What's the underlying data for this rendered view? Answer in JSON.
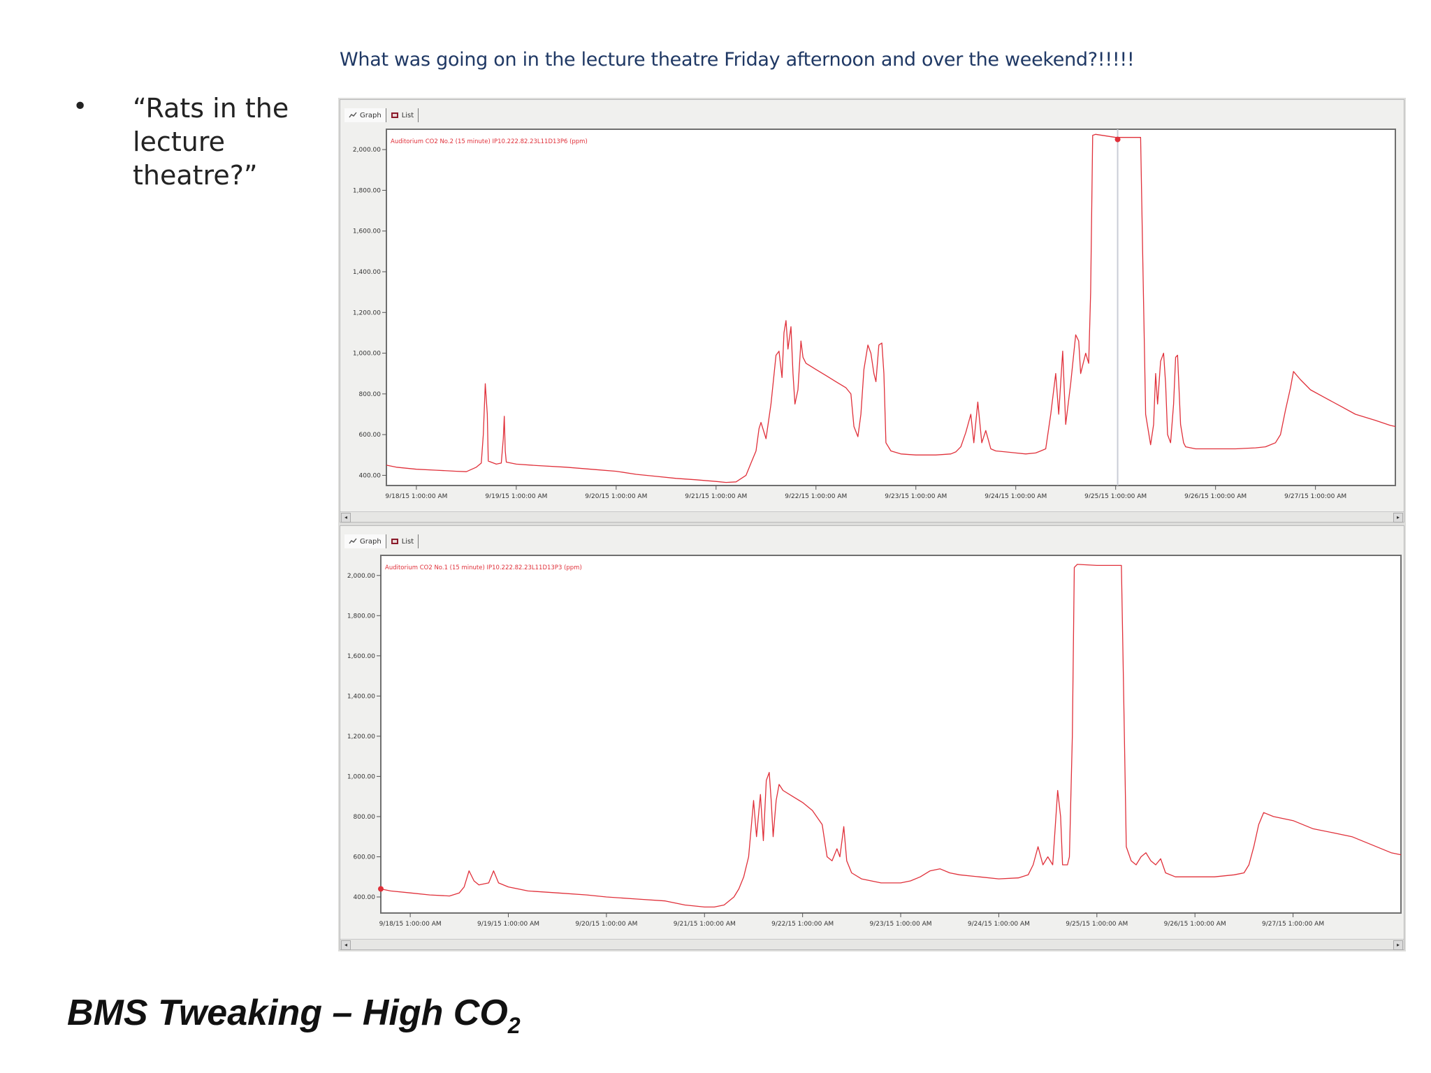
{
  "slide": {
    "headline": "What was going on in the lecture theatre Friday afternoon and over the weekend?!!!!!",
    "bullet": "“Rats in the lecture theatre?”",
    "footer_title": "BMS Tweaking – High CO",
    "footer_subscript": "2"
  },
  "tabs": [
    {
      "label": "Graph"
    },
    {
      "label": "List"
    }
  ],
  "chart_data": [
    {
      "type": "line",
      "legend": "Auditorium CO2 No.2 (15 minute) IP10.222.82.23L11D13P6 (ppm)",
      "ylim": [
        350,
        2100
      ],
      "yticks": [
        400,
        600,
        800,
        1000,
        1200,
        1400,
        1600,
        1800,
        2000
      ],
      "ytick_labels": [
        "400.00",
        "600.00",
        "800.00",
        "1,000.00",
        "1,200.00",
        "1,400.00",
        "1,600.00",
        "1,800.00",
        "2,000.00"
      ],
      "xlim": [
        -0.3,
        9.8
      ],
      "xticks": [
        0,
        1,
        2,
        3,
        4,
        5,
        6,
        7,
        8,
        9
      ],
      "xtick_labels": [
        "9/18/15 1:00:00 AM",
        "9/19/15 1:00:00 AM",
        "9/20/15 1:00:00 AM",
        "9/21/15 1:00:00 AM",
        "9/22/15 1:00:00 AM",
        "9/23/15 1:00:00 AM",
        "9/24/15 1:00:00 AM",
        "9/25/15 1:00:00 AM",
        "9/26/15 1:00:00 AM",
        "9/27/15 1:00:00 AM"
      ],
      "cursor_x": 7.02,
      "cursor_point": [
        7.02,
        2050
      ],
      "line_color": "#e0303a",
      "points": [
        [
          -0.3,
          450
        ],
        [
          -0.2,
          440
        ],
        [
          0.0,
          430
        ],
        [
          0.2,
          425
        ],
        [
          0.4,
          420
        ],
        [
          0.5,
          418
        ],
        [
          0.6,
          440
        ],
        [
          0.65,
          460
        ],
        [
          0.67,
          600
        ],
        [
          0.69,
          850
        ],
        [
          0.71,
          700
        ],
        [
          0.72,
          470
        ],
        [
          0.8,
          455
        ],
        [
          0.85,
          460
        ],
        [
          0.87,
          580
        ],
        [
          0.88,
          690
        ],
        [
          0.89,
          520
        ],
        [
          0.9,
          465
        ],
        [
          1.0,
          455
        ],
        [
          1.2,
          448
        ],
        [
          1.5,
          440
        ],
        [
          1.8,
          428
        ],
        [
          2.0,
          420
        ],
        [
          2.2,
          405
        ],
        [
          2.4,
          395
        ],
        [
          2.6,
          385
        ],
        [
          2.8,
          378
        ],
        [
          3.0,
          370
        ],
        [
          3.1,
          365
        ],
        [
          3.2,
          368
        ],
        [
          3.3,
          400
        ],
        [
          3.35,
          460
        ],
        [
          3.4,
          520
        ],
        [
          3.43,
          630
        ],
        [
          3.45,
          660
        ],
        [
          3.5,
          580
        ],
        [
          3.55,
          750
        ],
        [
          3.6,
          990
        ],
        [
          3.63,
          1010
        ],
        [
          3.66,
          880
        ],
        [
          3.68,
          1100
        ],
        [
          3.7,
          1160
        ],
        [
          3.72,
          1020
        ],
        [
          3.75,
          1130
        ],
        [
          3.77,
          900
        ],
        [
          3.79,
          750
        ],
        [
          3.82,
          820
        ],
        [
          3.85,
          1060
        ],
        [
          3.87,
          980
        ],
        [
          3.9,
          950
        ],
        [
          4.0,
          920
        ],
        [
          4.1,
          890
        ],
        [
          4.2,
          860
        ],
        [
          4.3,
          830
        ],
        [
          4.35,
          800
        ],
        [
          4.38,
          640
        ],
        [
          4.42,
          590
        ],
        [
          4.45,
          700
        ],
        [
          4.48,
          920
        ],
        [
          4.52,
          1040
        ],
        [
          4.55,
          1000
        ],
        [
          4.58,
          900
        ],
        [
          4.6,
          860
        ],
        [
          4.63,
          1040
        ],
        [
          4.66,
          1050
        ],
        [
          4.68,
          900
        ],
        [
          4.7,
          560
        ],
        [
          4.75,
          520
        ],
        [
          4.85,
          505
        ],
        [
          5.0,
          500
        ],
        [
          5.2,
          500
        ],
        [
          5.35,
          505
        ],
        [
          5.4,
          515
        ],
        [
          5.45,
          540
        ],
        [
          5.5,
          610
        ],
        [
          5.55,
          700
        ],
        [
          5.58,
          560
        ],
        [
          5.62,
          760
        ],
        [
          5.66,
          560
        ],
        [
          5.7,
          620
        ],
        [
          5.75,
          530
        ],
        [
          5.8,
          520
        ],
        [
          5.9,
          515
        ],
        [
          6.0,
          510
        ],
        [
          6.1,
          505
        ],
        [
          6.2,
          510
        ],
        [
          6.25,
          520
        ],
        [
          6.3,
          530
        ],
        [
          6.35,
          700
        ],
        [
          6.4,
          900
        ],
        [
          6.43,
          700
        ],
        [
          6.47,
          1010
        ],
        [
          6.5,
          650
        ],
        [
          6.55,
          850
        ],
        [
          6.6,
          1090
        ],
        [
          6.63,
          1060
        ],
        [
          6.65,
          900
        ],
        [
          6.7,
          1000
        ],
        [
          6.73,
          950
        ],
        [
          6.75,
          1300
        ],
        [
          6.77,
          2070
        ],
        [
          6.8,
          2075
        ],
        [
          7.0,
          2060
        ],
        [
          7.25,
          2060
        ],
        [
          7.27,
          1500
        ],
        [
          7.3,
          700
        ],
        [
          7.35,
          550
        ],
        [
          7.38,
          650
        ],
        [
          7.4,
          900
        ],
        [
          7.42,
          750
        ],
        [
          7.45,
          960
        ],
        [
          7.48,
          1000
        ],
        [
          7.5,
          850
        ],
        [
          7.52,
          600
        ],
        [
          7.55,
          560
        ],
        [
          7.58,
          750
        ],
        [
          7.6,
          980
        ],
        [
          7.62,
          990
        ],
        [
          7.65,
          650
        ],
        [
          7.68,
          560
        ],
        [
          7.7,
          540
        ],
        [
          7.8,
          530
        ],
        [
          8.0,
          530
        ],
        [
          8.2,
          530
        ],
        [
          8.4,
          535
        ],
        [
          8.5,
          540
        ],
        [
          8.6,
          560
        ],
        [
          8.65,
          600
        ],
        [
          8.7,
          720
        ],
        [
          8.75,
          830
        ],
        [
          8.78,
          910
        ],
        [
          8.85,
          870
        ],
        [
          8.95,
          820
        ],
        [
          9.1,
          780
        ],
        [
          9.25,
          740
        ],
        [
          9.4,
          700
        ],
        [
          9.6,
          670
        ],
        [
          9.75,
          645
        ],
        [
          9.8,
          640
        ]
      ]
    },
    {
      "type": "line",
      "legend": "Auditorium CO2 No.1 (15 minute) IP10.222.82.23L11D13P3 (ppm)",
      "ylim": [
        320,
        2100
      ],
      "yticks": [
        400,
        600,
        800,
        1000,
        1200,
        1400,
        1600,
        1800,
        2000
      ],
      "ytick_labels": [
        "400.00",
        "600.00",
        "800.00",
        "1,000.00",
        "1,200.00",
        "1,400.00",
        "1,600.00",
        "1,800.00",
        "2,000.00"
      ],
      "xlim": [
        -0.3,
        10.1
      ],
      "xticks": [
        0,
        1,
        2,
        3,
        4,
        5,
        6,
        7,
        8,
        9
      ],
      "xtick_labels": [
        "9/18/15 1:00:00 AM",
        "9/19/15 1:00:00 AM",
        "9/20/15 1:00:00 AM",
        "9/21/15 1:00:00 AM",
        "9/22/15 1:00:00 AM",
        "9/23/15 1:00:00 AM",
        "9/24/15 1:00:00 AM",
        "9/25/15 1:00:00 AM",
        "9/26/15 1:00:00 AM",
        "9/27/15 1:00:00 AM"
      ],
      "cursor_point": [
        -0.3,
        440
      ],
      "line_color": "#e0303a",
      "points": [
        [
          -0.3,
          440
        ],
        [
          -0.2,
          430
        ],
        [
          0.0,
          420
        ],
        [
          0.2,
          410
        ],
        [
          0.4,
          405
        ],
        [
          0.5,
          420
        ],
        [
          0.55,
          450
        ],
        [
          0.6,
          530
        ],
        [
          0.65,
          480
        ],
        [
          0.7,
          460
        ],
        [
          0.8,
          470
        ],
        [
          0.85,
          530
        ],
        [
          0.9,
          470
        ],
        [
          1.0,
          450
        ],
        [
          1.2,
          430
        ],
        [
          1.5,
          420
        ],
        [
          1.8,
          410
        ],
        [
          2.0,
          400
        ],
        [
          2.3,
          390
        ],
        [
          2.6,
          380
        ],
        [
          2.8,
          360
        ],
        [
          3.0,
          350
        ],
        [
          3.1,
          350
        ],
        [
          3.2,
          360
        ],
        [
          3.3,
          400
        ],
        [
          3.35,
          440
        ],
        [
          3.4,
          500
        ],
        [
          3.45,
          600
        ],
        [
          3.5,
          880
        ],
        [
          3.53,
          700
        ],
        [
          3.57,
          910
        ],
        [
          3.6,
          680
        ],
        [
          3.63,
          980
        ],
        [
          3.66,
          1020
        ],
        [
          3.68,
          880
        ],
        [
          3.7,
          700
        ],
        [
          3.73,
          880
        ],
        [
          3.76,
          960
        ],
        [
          3.8,
          930
        ],
        [
          3.9,
          900
        ],
        [
          4.0,
          870
        ],
        [
          4.1,
          830
        ],
        [
          4.2,
          760
        ],
        [
          4.25,
          600
        ],
        [
          4.3,
          580
        ],
        [
          4.35,
          640
        ],
        [
          4.38,
          600
        ],
        [
          4.42,
          750
        ],
        [
          4.45,
          580
        ],
        [
          4.5,
          520
        ],
        [
          4.6,
          490
        ],
        [
          4.8,
          470
        ],
        [
          5.0,
          470
        ],
        [
          5.1,
          480
        ],
        [
          5.2,
          500
        ],
        [
          5.3,
          530
        ],
        [
          5.4,
          540
        ],
        [
          5.5,
          520
        ],
        [
          5.6,
          510
        ],
        [
          5.8,
          500
        ],
        [
          6.0,
          490
        ],
        [
          6.2,
          495
        ],
        [
          6.3,
          510
        ],
        [
          6.35,
          560
        ],
        [
          6.4,
          650
        ],
        [
          6.45,
          560
        ],
        [
          6.5,
          600
        ],
        [
          6.55,
          560
        ],
        [
          6.6,
          930
        ],
        [
          6.63,
          800
        ],
        [
          6.65,
          560
        ],
        [
          6.7,
          560
        ],
        [
          6.72,
          600
        ],
        [
          6.75,
          1200
        ],
        [
          6.77,
          2040
        ],
        [
          6.8,
          2055
        ],
        [
          7.0,
          2050
        ],
        [
          7.25,
          2050
        ],
        [
          7.27,
          1500
        ],
        [
          7.3,
          650
        ],
        [
          7.35,
          580
        ],
        [
          7.4,
          560
        ],
        [
          7.45,
          600
        ],
        [
          7.5,
          620
        ],
        [
          7.55,
          580
        ],
        [
          7.6,
          560
        ],
        [
          7.65,
          590
        ],
        [
          7.7,
          520
        ],
        [
          7.8,
          500
        ],
        [
          8.0,
          500
        ],
        [
          8.2,
          500
        ],
        [
          8.4,
          510
        ],
        [
          8.5,
          520
        ],
        [
          8.55,
          560
        ],
        [
          8.6,
          650
        ],
        [
          8.65,
          760
        ],
        [
          8.7,
          820
        ],
        [
          8.8,
          800
        ],
        [
          9.0,
          780
        ],
        [
          9.2,
          740
        ],
        [
          9.4,
          720
        ],
        [
          9.6,
          700
        ],
        [
          9.8,
          660
        ],
        [
          10.0,
          620
        ],
        [
          10.1,
          610
        ]
      ]
    }
  ]
}
